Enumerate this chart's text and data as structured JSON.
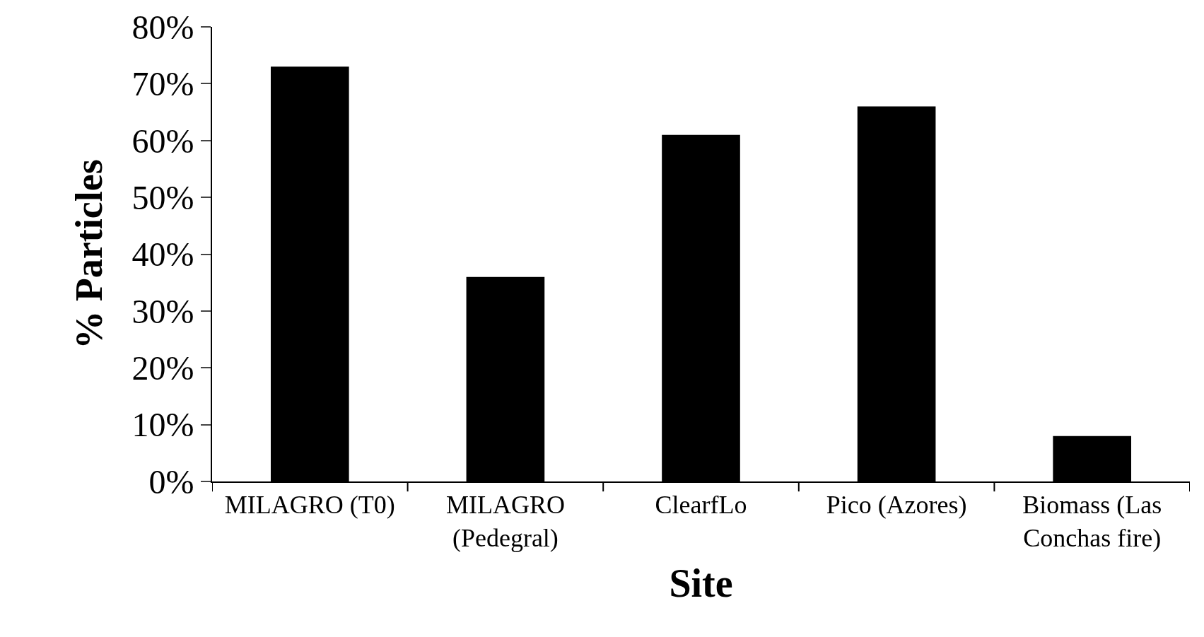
{
  "chart_data": {
    "type": "bar",
    "xlabel": "Site",
    "ylabel": "% Particles",
    "categories": [
      "MILAGRO (T0)",
      "MILAGRO (Pedegral)",
      "ClearfLo",
      "Pico (Azores)",
      "Biomass (Las Conchas fire)"
    ],
    "values": [
      73,
      36,
      61,
      66,
      8
    ],
    "color": "#000000",
    "ylim": [
      0,
      80
    ],
    "yticks": [
      {
        "value": 0,
        "label": "0%"
      },
      {
        "value": 10,
        "label": "10%"
      },
      {
        "value": 20,
        "label": "20%"
      },
      {
        "value": 30,
        "label": "30%"
      },
      {
        "value": 40,
        "label": "40%"
      },
      {
        "value": 50,
        "label": "50%"
      },
      {
        "value": 60,
        "label": "60%"
      },
      {
        "value": 70,
        "label": "70%"
      },
      {
        "value": 80,
        "label": "80%"
      }
    ]
  }
}
